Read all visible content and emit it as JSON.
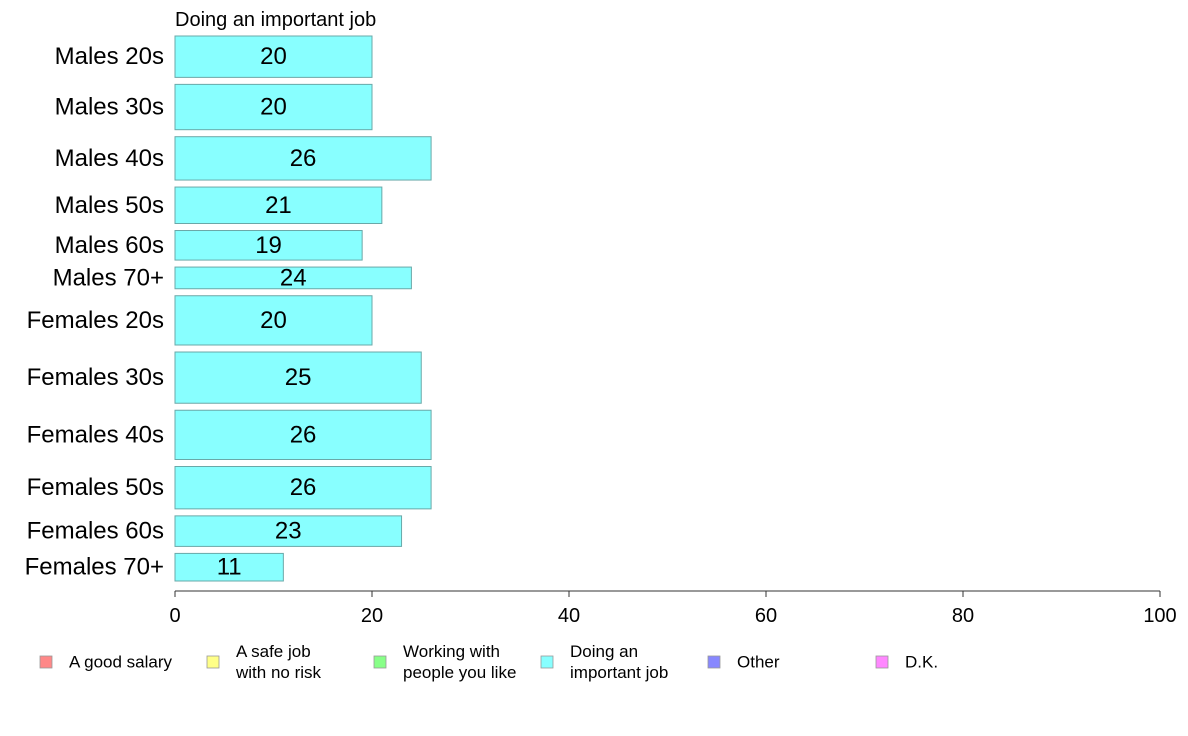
{
  "chart_data": {
    "type": "bar",
    "orientation": "horizontal",
    "panel_title": "Doing an important job",
    "categories": [
      "Males 20s",
      "Males 30s",
      "Males 40s",
      "Males 50s",
      "Males 60s",
      "Males 70+",
      "Females 20s",
      "Females 30s",
      "Females 40s",
      "Females 50s",
      "Females 60s",
      "Females 70+"
    ],
    "values": [
      20,
      20,
      26,
      21,
      19,
      24,
      20,
      25,
      26,
      26,
      23,
      11
    ],
    "bar_weights": [
      42,
      46,
      44,
      37,
      30,
      22,
      50,
      52,
      50,
      43,
      31,
      28
    ],
    "bar_color": "#88ffff",
    "bar_border_color": "#6aa8a8",
    "xlim": [
      0,
      100
    ],
    "xticks": [
      0,
      20,
      40,
      60,
      80,
      100
    ],
    "grid": false,
    "legend": {
      "placement": "bottom",
      "items": [
        {
          "lines": [
            "A good salary"
          ],
          "color": "#ff8888"
        },
        {
          "lines": [
            "A safe job",
            "with no risk"
          ],
          "color": "#ffff88"
        },
        {
          "lines": [
            "Working with",
            "people you like"
          ],
          "color": "#88ff88"
        },
        {
          "lines": [
            "Doing an",
            "important job"
          ],
          "color": "#88ffff"
        },
        {
          "lines": [
            "Other"
          ],
          "color": "#8888ff"
        },
        {
          "lines": [
            "D.K."
          ],
          "color": "#ff88ff"
        }
      ]
    }
  }
}
